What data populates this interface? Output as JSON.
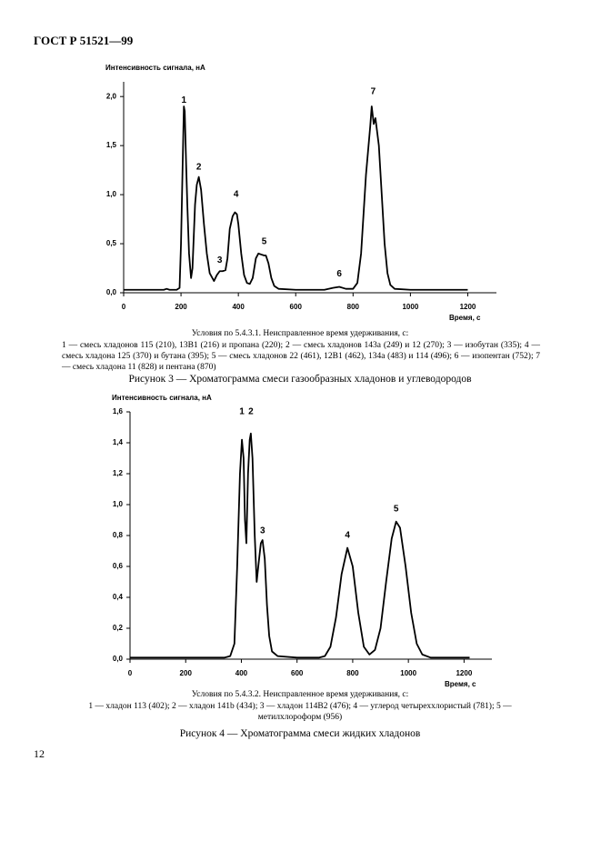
{
  "header": {
    "title": "ГОСТ Р 51521—99"
  },
  "chart_data": [
    {
      "type": "line",
      "y_label": "Интенсивность сигнала, нА",
      "x_label": "Время, с",
      "x": [
        0,
        140,
        150,
        160,
        185,
        195,
        200,
        205,
        210,
        213,
        218,
        222,
        228,
        235,
        240,
        249,
        255,
        262,
        270,
        280,
        290,
        300,
        315,
        325,
        335,
        345,
        355,
        362,
        370,
        380,
        388,
        395,
        400,
        410,
        420,
        430,
        440,
        450,
        461,
        470,
        480,
        490,
        496,
        505,
        515,
        525,
        540,
        600,
        700,
        730,
        752,
        775,
        800,
        815,
        828,
        845,
        860,
        865,
        872,
        878,
        890,
        900,
        910,
        920,
        930,
        945,
        1000,
        1200
      ],
      "values": [
        0.03,
        0.03,
        0.04,
        0.03,
        0.03,
        0.05,
        0.5,
        1.2,
        1.9,
        1.85,
        1.3,
        0.9,
        0.4,
        0.15,
        0.25,
        0.9,
        1.1,
        1.18,
        1.05,
        0.7,
        0.4,
        0.2,
        0.12,
        0.18,
        0.22,
        0.22,
        0.23,
        0.35,
        0.65,
        0.78,
        0.82,
        0.8,
        0.7,
        0.4,
        0.18,
        0.1,
        0.09,
        0.15,
        0.35,
        0.4,
        0.39,
        0.38,
        0.38,
        0.3,
        0.15,
        0.07,
        0.04,
        0.03,
        0.03,
        0.05,
        0.06,
        0.04,
        0.04,
        0.1,
        0.4,
        1.2,
        1.7,
        1.9,
        1.72,
        1.78,
        1.5,
        1.0,
        0.5,
        0.2,
        0.08,
        0.04,
        0.03,
        0.03
      ],
      "color": "#000000",
      "xlim": [
        0,
        1300
      ],
      "ylim": [
        0,
        2.15
      ],
      "xticks": [
        0,
        200,
        400,
        600,
        800,
        1000,
        1200
      ],
      "yticks": [
        {
          "value": 0,
          "label": "0,0"
        },
        {
          "value": 0.5,
          "label": "0,5"
        },
        {
          "value": 1,
          "label": "1,0"
        },
        {
          "value": 1.5,
          "label": "1,5"
        },
        {
          "value": 2,
          "label": "2,0"
        }
      ],
      "annotations": [
        {
          "text": "1",
          "x": 210,
          "y": 1.96
        },
        {
          "text": "2",
          "x": 262,
          "y": 1.28
        },
        {
          "text": "3",
          "x": 335,
          "y": 0.33
        },
        {
          "text": "4",
          "x": 392,
          "y": 1.0
        },
        {
          "text": "5",
          "x": 490,
          "y": 0.52
        },
        {
          "text": "6",
          "x": 752,
          "y": 0.19
        },
        {
          "text": "7",
          "x": 870,
          "y": 2.05
        }
      ]
    },
    {
      "type": "line",
      "y_label": "Интенсивность сигнала, нА",
      "x_label": "Время, с",
      "x": [
        0,
        340,
        360,
        375,
        385,
        395,
        402,
        408,
        413,
        418,
        424,
        430,
        434,
        440,
        448,
        455,
        462,
        470,
        476,
        484,
        492,
        500,
        510,
        530,
        600,
        680,
        700,
        720,
        740,
        760,
        781,
        800,
        820,
        840,
        860,
        880,
        900,
        920,
        940,
        956,
        970,
        990,
        1010,
        1030,
        1050,
        1080,
        1220
      ],
      "values": [
        0.01,
        0.01,
        0.02,
        0.1,
        0.6,
        1.2,
        1.42,
        1.3,
        0.9,
        0.75,
        1.2,
        1.42,
        1.46,
        1.3,
        0.8,
        0.5,
        0.62,
        0.75,
        0.77,
        0.65,
        0.35,
        0.15,
        0.05,
        0.02,
        0.01,
        0.01,
        0.02,
        0.08,
        0.27,
        0.55,
        0.72,
        0.6,
        0.3,
        0.08,
        0.03,
        0.06,
        0.2,
        0.5,
        0.78,
        0.89,
        0.85,
        0.6,
        0.3,
        0.1,
        0.03,
        0.01,
        0.01
      ],
      "color": "#000000",
      "xlim": [
        0,
        1300
      ],
      "ylim": [
        0,
        1.6
      ],
      "xticks": [
        0,
        200,
        400,
        600,
        800,
        1000,
        1200
      ],
      "yticks": [
        {
          "value": 0,
          "label": "0,0"
        },
        {
          "value": 0.2,
          "label": "0,2"
        },
        {
          "value": 0.4,
          "label": "0,4"
        },
        {
          "value": 0.6,
          "label": "0,6"
        },
        {
          "value": 0.8,
          "label": "0,8"
        },
        {
          "value": 1,
          "label": "1,0"
        },
        {
          "value": 1.2,
          "label": "1,2"
        },
        {
          "value": 1.4,
          "label": "1,4"
        },
        {
          "value": 1.6,
          "label": "1,6"
        }
      ],
      "annotations": [
        {
          "text": "1",
          "x": 402,
          "y": 1.6
        },
        {
          "text": "2",
          "x": 434,
          "y": 1.6
        },
        {
          "text": "3",
          "x": 476,
          "y": 0.83
        },
        {
          "text": "4",
          "x": 781,
          "y": 0.8
        },
        {
          "text": "5",
          "x": 956,
          "y": 0.97
        }
      ]
    }
  ],
  "figures": [
    {
      "conditions": "Условия по 5.4.3.1. Неисправленное время удерживания, с:",
      "legend": "1 — смесь хладонов 115 (210), 13В1 (216) и пропана (220); 2 — смесь хладонов 143а (249) и 12 (270); 3 — изобутан (335); 4 — смесь хладона 125 (370) и бутана (395); 5 — смесь хладонов 22 (461), 12В1 (462), 134а (483) и 114 (496); 6 — изопентан (752); 7 — смесь хладона 11 (828) и пентана (870)",
      "caption": "Рисунок 3 — Хроматограмма смеси газообразных хладонов и углеводородов"
    },
    {
      "conditions": "Условия по 5.4.3.2. Неисправленное время удерживания, с:",
      "legend": "1 — хладон 113 (402); 2 — хладон 141b (434); 3 — хладон 114В2 (476); 4 — углерод четыреххлористый (781); 5 — метилхлороформ (956)",
      "caption": "Рисунок 4 — Хроматограмма смеси жидких хладонов"
    }
  ],
  "footer": {
    "page_number": "12"
  }
}
